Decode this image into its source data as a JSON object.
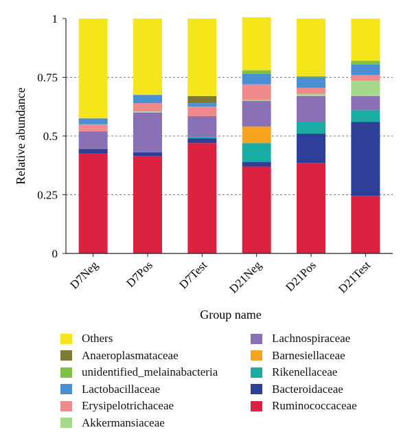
{
  "chart_data": {
    "type": "bar",
    "stacked": true,
    "xlabel": "Group name",
    "ylabel": "Relative abundance",
    "ylim": [
      0,
      1
    ],
    "y_ticks": [
      "0",
      "0.25",
      "0.5",
      "0.75",
      "1"
    ],
    "y_tick_values": [
      0,
      0.25,
      0.5,
      0.75,
      1
    ],
    "grid": "dashed horizontal at 0.25, 0.5, 0.75",
    "legend_position": "bottom",
    "categories": [
      "D7Neg",
      "D7Pos",
      "D7Test",
      "D21Neg",
      "D21Pos",
      "D21Test"
    ],
    "series": [
      {
        "name": "Ruminococcaceae",
        "color": "#dc2240",
        "values": [
          0.425,
          0.415,
          0.47,
          0.37,
          0.385,
          0.245
        ]
      },
      {
        "name": "Bacteroidaceae",
        "color": "#2e3f97",
        "values": [
          0.02,
          0.015,
          0.02,
          0.02,
          0.125,
          0.315
        ]
      },
      {
        "name": "Rikenellaceae",
        "color": "#1aada4",
        "values": [
          0.0,
          0.0,
          0.005,
          0.08,
          0.05,
          0.05
        ]
      },
      {
        "name": "Barnesiellaceae",
        "color": "#f6a31d",
        "values": [
          0.0,
          0.0,
          0.0,
          0.07,
          0.0,
          0.0
        ]
      },
      {
        "name": "Lachnospiraceae",
        "color": "#8a71b6",
        "values": [
          0.075,
          0.17,
          0.09,
          0.11,
          0.11,
          0.06
        ]
      },
      {
        "name": "Akkermansiaceae",
        "color": "#a6d98c",
        "values": [
          0.0,
          0.005,
          0.0,
          0.005,
          0.01,
          0.065
        ]
      },
      {
        "name": "Erysipelotrichaceae",
        "color": "#f08a8c",
        "values": [
          0.03,
          0.035,
          0.04,
          0.065,
          0.025,
          0.025
        ]
      },
      {
        "name": "Lactobacillaceae",
        "color": "#4a8fd3",
        "values": [
          0.025,
          0.035,
          0.015,
          0.045,
          0.045,
          0.045
        ]
      },
      {
        "name": "unidentified_melainabacteria",
        "color": "#7dc242",
        "values": [
          0.0,
          0.0,
          0.0,
          0.015,
          0.005,
          0.015
        ]
      },
      {
        "name": "Anaeroplasmataceae",
        "color": "#7f7a33",
        "values": [
          0.0,
          0.0,
          0.03,
          0.0,
          0.0,
          0.0
        ]
      },
      {
        "name": "Others",
        "color": "#f5e51b",
        "values": [
          0.425,
          0.325,
          0.33,
          0.225,
          0.245,
          0.18
        ]
      }
    ],
    "legend_left": [
      "Others",
      "Anaeroplasmataceae",
      "unidentified_melainabacteria",
      "Lactobacillaceae",
      "Erysipelotrichaceae",
      "Akkermansiaceae"
    ],
    "legend_right": [
      "Lachnospiraceae",
      "Barnesiellaceae",
      "Rikenellaceae",
      "Bacteroidaceae",
      "Ruminococcaceae"
    ]
  }
}
